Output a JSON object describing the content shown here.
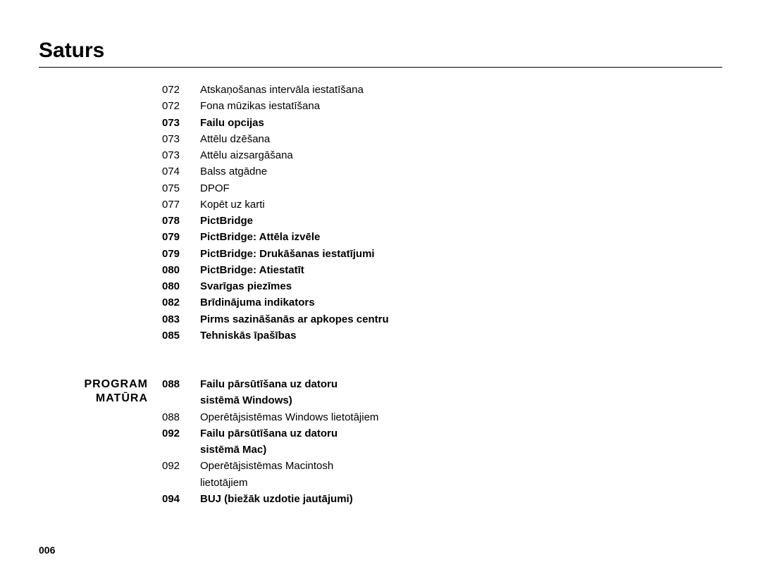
{
  "heading": "Saturs",
  "page_number": "006",
  "first_block": {
    "section_label": "",
    "rows": [
      {
        "page": "072",
        "title": "Atskaņošanas intervāla iestatīšana",
        "bold": false
      },
      {
        "page": "072",
        "title": "Fona mūzikas iestatīšana",
        "bold": false
      },
      {
        "page": "073",
        "title": "Failu opcijas",
        "bold": true
      },
      {
        "page": "073",
        "title": "Attēlu dzēšana",
        "bold": false
      },
      {
        "page": "073",
        "title": "Attēlu aizsargāšana",
        "bold": false
      },
      {
        "page": "074",
        "title": "Balss atgādne",
        "bold": false
      },
      {
        "page": "075",
        "title": "DPOF",
        "bold": false
      },
      {
        "page": "077",
        "title": "Kopēt uz karti",
        "bold": false
      },
      {
        "page": "078",
        "title": "PictBridge",
        "bold": true
      },
      {
        "page": "079",
        "title": "PictBridge: Attēla izvēle",
        "bold": true
      },
      {
        "page": "079",
        "title": "PictBridge: Drukāšanas iestatījumi",
        "bold": true
      },
      {
        "page": "080",
        "title": "PictBridge: Atiestatīt",
        "bold": true
      },
      {
        "page": "080",
        "title": "Svarīgas piezīmes",
        "bold": true
      },
      {
        "page": "082",
        "title": "Brīdinājuma indikators",
        "bold": true
      },
      {
        "page": "083",
        "title": "Pirms sazināšanās ar apkopes centru",
        "bold": true
      },
      {
        "page": "085",
        "title": "Tehniskās īpašības",
        "bold": true
      }
    ]
  },
  "second_block": {
    "section_label_line1": "PROGRAM",
    "section_label_line2": "MATŪRA",
    "rows": [
      {
        "page": "088",
        "title": "Failu pārsūtīšana uz datoru",
        "bold": true
      },
      {
        "page": "",
        "title": "sistēmā Windows)",
        "bold": true
      },
      {
        "page": "088",
        "title": "Operētājsistēmas Windows lietotājiem",
        "bold": false
      },
      {
        "page": "092",
        "title": "Failu pārsūtīšana uz datoru",
        "bold": true
      },
      {
        "page": "",
        "title": "sistēmā Mac)",
        "bold": true
      },
      {
        "page": "092",
        "title": "Operētājsistēmas Macintosh",
        "bold": false
      },
      {
        "page": "",
        "title": "lietotājiem",
        "bold": false
      },
      {
        "page": "094",
        "title": "BUJ (biežāk uzdotie jautājumi)",
        "bold": true
      }
    ]
  }
}
